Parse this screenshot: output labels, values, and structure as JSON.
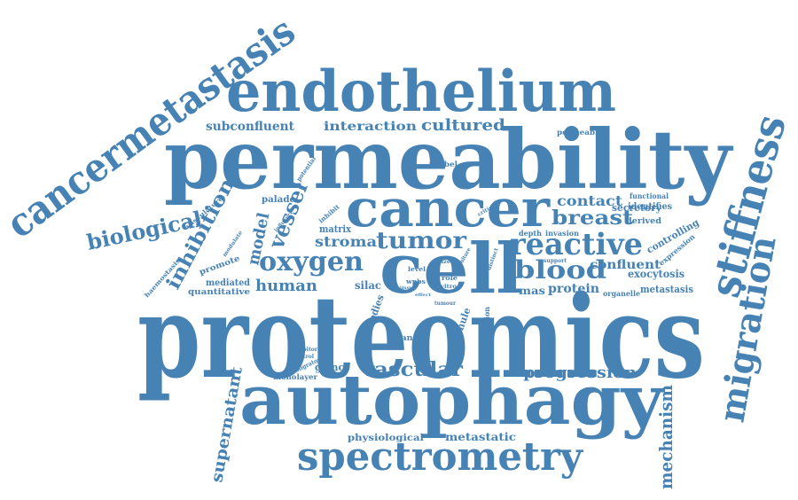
{
  "color": "#4682b4",
  "words": {
    "proteomics": "proteomics",
    "permeability": "permeability",
    "autophagy": "autophagy",
    "endothelium": "endothelium",
    "cancermetastasis": "cancermetastasis",
    "cancer": "cancer",
    "cell": "cell",
    "spectrometry": "spectrometry",
    "stiffness": "stiffness",
    "migration": "migration",
    "tumor": "tumor",
    "oxygen": "oxygen",
    "reactive": "reactive",
    "breast": "breast",
    "blood": "blood",
    "vessel": "vessel",
    "biological": "biological",
    "inhibition": "inhibition",
    "model": "model",
    "human": "human",
    "stroma": "stroma",
    "matrix": "matrix",
    "vascular": "vascular",
    "progression": "progression",
    "mechanism": "mechanism",
    "supernatant": "supernatant",
    "subconfluent": "subconfluent",
    "interaction": "interaction",
    "cultured": "cultured",
    "contact": "contact",
    "confluent": "confluent",
    "metastatic": "metastatic",
    "physiological": "physiological",
    "monolayer": "monolayer",
    "glance": "glance",
    "change": "change",
    "silac": "silac",
    "bodies": "bodies",
    "granule": "granule",
    "formation": "formation",
    "protein": "protein",
    "mas": "mas",
    "organelle": "organelle",
    "metastasis": "metastasis",
    "exocytosis": "exocytosis",
    "expression": "expression",
    "controlling": "controlling",
    "secretory": "secretory",
    "derived": "derived",
    "identifies": "identifies",
    "functional": "functional",
    "permeable": "permeable",
    "palade": "palade",
    "weibel": "weibel",
    "potential": "potential",
    "vasculature": "vasculature",
    "influence": "influence",
    "inhibit": "inhibit",
    "critical": "critical",
    "depth": "depth",
    "invasion": "invasion",
    "support": "support",
    "distinct": "distinct",
    "culture": "culture",
    "size": "size",
    "level": "level",
    "wpbs": "wpbs",
    "tissue": "tissue",
    "role": "role",
    "vitro": "vitro",
    "effect": "effect",
    "tumour": "tumour",
    "control": "control",
    "inhibitor": "inhibitor",
    "migratory": "migratory",
    "quantitative": "quantitative",
    "mediated": "mediated",
    "promote": "promote",
    "modulate": "modulate",
    "haemostasis": "haemostasis"
  }
}
